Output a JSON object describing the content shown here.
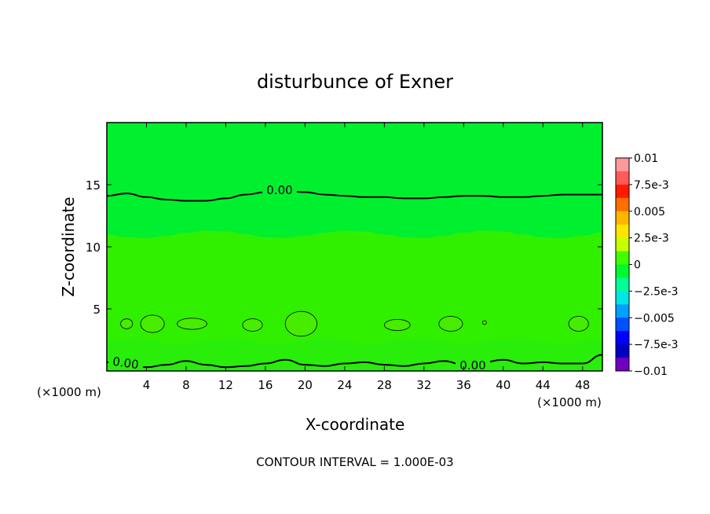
{
  "chart_data": {
    "type": "heatmap",
    "title": "disturbunce of Exner",
    "xlabel": "X-coordinate",
    "ylabel": "Z-coordinate",
    "x_unit": "(×1000 m)",
    "xlim": [
      0,
      50
    ],
    "ylim": [
      0,
      20
    ],
    "x_ticks": [
      "4",
      "8",
      "12",
      "16",
      "20",
      "24",
      "28",
      "32",
      "36",
      "40",
      "44",
      "48"
    ],
    "y_ticks": [
      "5",
      "10",
      "15"
    ],
    "footer": "CONTOUR INTERVAL = 1.000E-03",
    "contour_label": "0.00",
    "colorbar": {
      "labels": [
        "0.01",
        "7.5e-3",
        "0.005",
        "2.5e-3",
        "0",
        "−2.5e-3",
        "−0.005",
        "−7.5e-3",
        "−0.01"
      ],
      "colors": [
        "#ff9a9a",
        "#ff5a5a",
        "#ff1a00",
        "#ff6f00",
        "#ffb400",
        "#ffe600",
        "#c8ff00",
        "#40ff00",
        "#00f830",
        "#00ff96",
        "#00e6e6",
        "#00a0ff",
        "#0050ff",
        "#0000ff",
        "#0000c0",
        "#7000c0"
      ]
    },
    "colors": {
      "upper_region": "#00f030",
      "middle_region": "#30f000",
      "lower_band": "#28ee0a"
    },
    "zero_contour_x": [
      0,
      2,
      4,
      6,
      8,
      10,
      12,
      14,
      16,
      18,
      20,
      22,
      24,
      26,
      28,
      30,
      32,
      34,
      36,
      38,
      40,
      42,
      44,
      46,
      48,
      50
    ],
    "zero_contour_top_z": [
      14.1,
      14.3,
      14.0,
      13.8,
      13.7,
      13.7,
      13.9,
      14.2,
      14.4,
      14.5,
      14.4,
      14.2,
      14.1,
      14.0,
      14.0,
      13.9,
      13.9,
      14.0,
      14.1,
      14.1,
      14.0,
      14.0,
      14.1,
      14.2,
      14.2,
      14.2
    ],
    "zero_contour_bottom_z": [
      0.7,
      0.6,
      0.3,
      0.5,
      0.8,
      0.5,
      0.3,
      0.4,
      0.6,
      0.9,
      0.5,
      0.4,
      0.6,
      0.7,
      0.5,
      0.4,
      0.6,
      0.8,
      0.5,
      0.7,
      0.9,
      0.6,
      0.7,
      0.6,
      0.6,
      1.3
    ],
    "small_contours": [
      {
        "x": 2.0,
        "z": 3.8,
        "rx": 0.6,
        "rz": 0.4
      },
      {
        "x": 4.6,
        "z": 3.8,
        "rx": 1.2,
        "rz": 0.7
      },
      {
        "x": 8.6,
        "z": 3.8,
        "rx": 1.5,
        "rz": 0.45
      },
      {
        "x": 14.7,
        "z": 3.7,
        "rx": 1.0,
        "rz": 0.5
      },
      {
        "x": 19.6,
        "z": 3.8,
        "rx": 1.6,
        "rz": 1.0
      },
      {
        "x": 29.3,
        "z": 3.7,
        "rx": 1.3,
        "rz": 0.45
      },
      {
        "x": 34.7,
        "z": 3.8,
        "rx": 1.2,
        "rz": 0.6
      },
      {
        "x": 38.1,
        "z": 3.9,
        "rx": 0.2,
        "rz": 0.15
      },
      {
        "x": 47.6,
        "z": 3.8,
        "rx": 1.0,
        "rz": 0.6
      }
    ]
  }
}
